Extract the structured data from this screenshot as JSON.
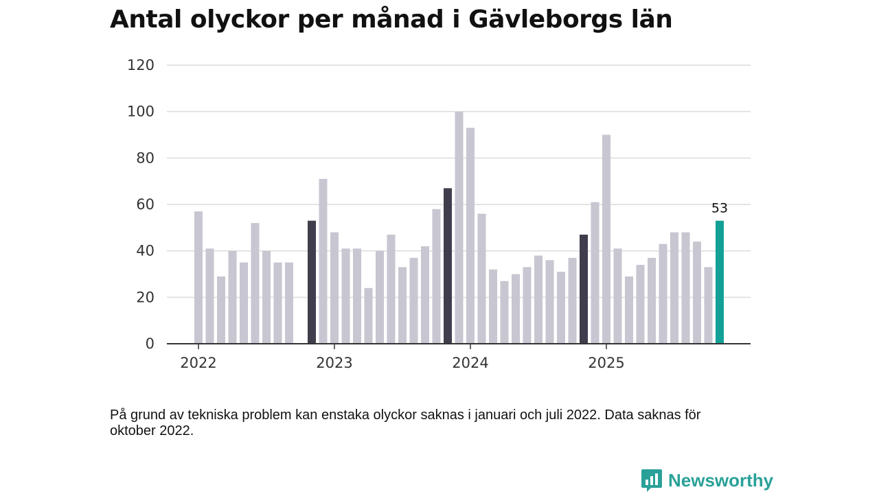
{
  "colors": {
    "bar_default": "#c7c6d1",
    "bar_january": "#3f3e4d",
    "bar_latest": "#13a096",
    "grid": "#dcdcdc",
    "axis": "#333333",
    "brand": "#2aa198"
  },
  "chart_data": {
    "type": "bar",
    "title": "Antal olyckor per månad i Gävleborgs län",
    "xlabel": "",
    "ylabel": "",
    "ylim": [
      0,
      120
    ],
    "yticks": [
      "0",
      "20",
      "40",
      "60",
      "80",
      "100",
      "120"
    ],
    "year_labels": [
      {
        "label": "2022",
        "month_index": 0
      },
      {
        "label": "2023",
        "month_index": 12
      },
      {
        "label": "2024",
        "month_index": 24
      },
      {
        "label": "2025",
        "month_index": 36
      }
    ],
    "series": [
      {
        "name": "Antal olyckor",
        "start": "2022-01",
        "values": [
          57,
          41,
          29,
          40,
          35,
          52,
          40,
          35,
          35,
          null,
          53,
          71,
          48,
          41,
          41,
          24,
          40,
          47,
          33,
          37,
          42,
          58,
          67,
          100,
          93,
          56,
          32,
          27,
          30,
          33,
          38,
          36,
          31,
          37,
          47,
          61,
          90,
          41,
          29,
          34,
          37,
          43,
          48,
          48,
          44,
          33,
          53
        ]
      }
    ],
    "highlight": {
      "dark_indices": [
        10,
        22,
        34
      ],
      "latest_index": 46,
      "latest_label": "53"
    }
  },
  "footnote": "På grund av tekniska problem kan enstaka olyckor saknas i januari och juli 2022. Data saknas för oktober 2022.",
  "brand": {
    "name": "Newsworthy",
    "icon": "newsworthy-logo-icon"
  }
}
